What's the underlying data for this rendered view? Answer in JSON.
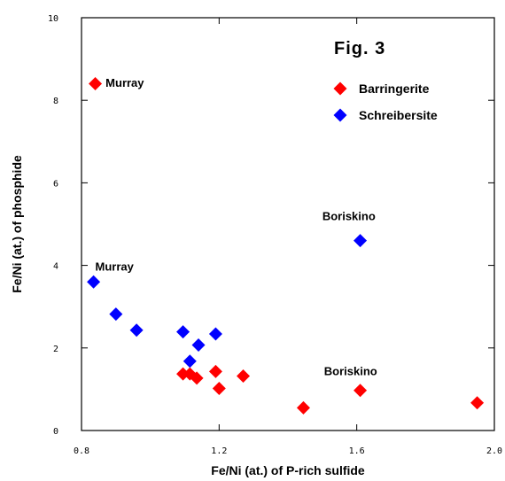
{
  "chart_data": {
    "type": "scatter",
    "title": "Fig. 3",
    "xlabel": "Fe/Ni (at.) of P-rich sulfide",
    "ylabel": "Fe/Ni (at.) of phosphide",
    "xlim": [
      0.8,
      2.0
    ],
    "ylim": [
      0,
      10
    ],
    "xticks": [
      0.8,
      1.2,
      1.6,
      2.0
    ],
    "xtick_labels": [
      "0.8",
      "1.2",
      "1.6",
      "2.0"
    ],
    "yticks": [
      0,
      2,
      4,
      6,
      8,
      10
    ],
    "ytick_labels": [
      "0",
      "2",
      "4",
      "6",
      "8",
      "10"
    ],
    "legend_position": "top-right",
    "series": [
      {
        "name": "Barringerite",
        "color": "#ff0000",
        "marker": "diamond",
        "points": [
          {
            "x": 0.84,
            "y": 8.4
          },
          {
            "x": 1.095,
            "y": 1.37
          },
          {
            "x": 1.115,
            "y": 1.37
          },
          {
            "x": 1.135,
            "y": 1.27
          },
          {
            "x": 1.19,
            "y": 1.43
          },
          {
            "x": 1.2,
            "y": 1.02
          },
          {
            "x": 1.27,
            "y": 1.32
          },
          {
            "x": 1.445,
            "y": 0.55
          },
          {
            "x": 1.61,
            "y": 0.97
          },
          {
            "x": 1.95,
            "y": 0.67
          }
        ]
      },
      {
        "name": "Schreibersite",
        "color": "#0000ff",
        "marker": "diamond",
        "points": [
          {
            "x": 0.835,
            "y": 3.6
          },
          {
            "x": 0.9,
            "y": 2.82
          },
          {
            "x": 0.96,
            "y": 2.43
          },
          {
            "x": 1.095,
            "y": 2.39
          },
          {
            "x": 1.115,
            "y": 1.68
          },
          {
            "x": 1.14,
            "y": 2.07
          },
          {
            "x": 1.19,
            "y": 2.34
          },
          {
            "x": 1.61,
            "y": 4.6
          }
        ]
      }
    ],
    "annotations": [
      {
        "text": "Murray",
        "x": 0.87,
        "y": 8.43
      },
      {
        "text": "Murray",
        "x": 0.84,
        "y": 3.98
      },
      {
        "text": "Boriskino",
        "x": 1.5,
        "y": 5.2
      },
      {
        "text": "Boriskino",
        "x": 1.505,
        "y": 1.45
      }
    ]
  }
}
